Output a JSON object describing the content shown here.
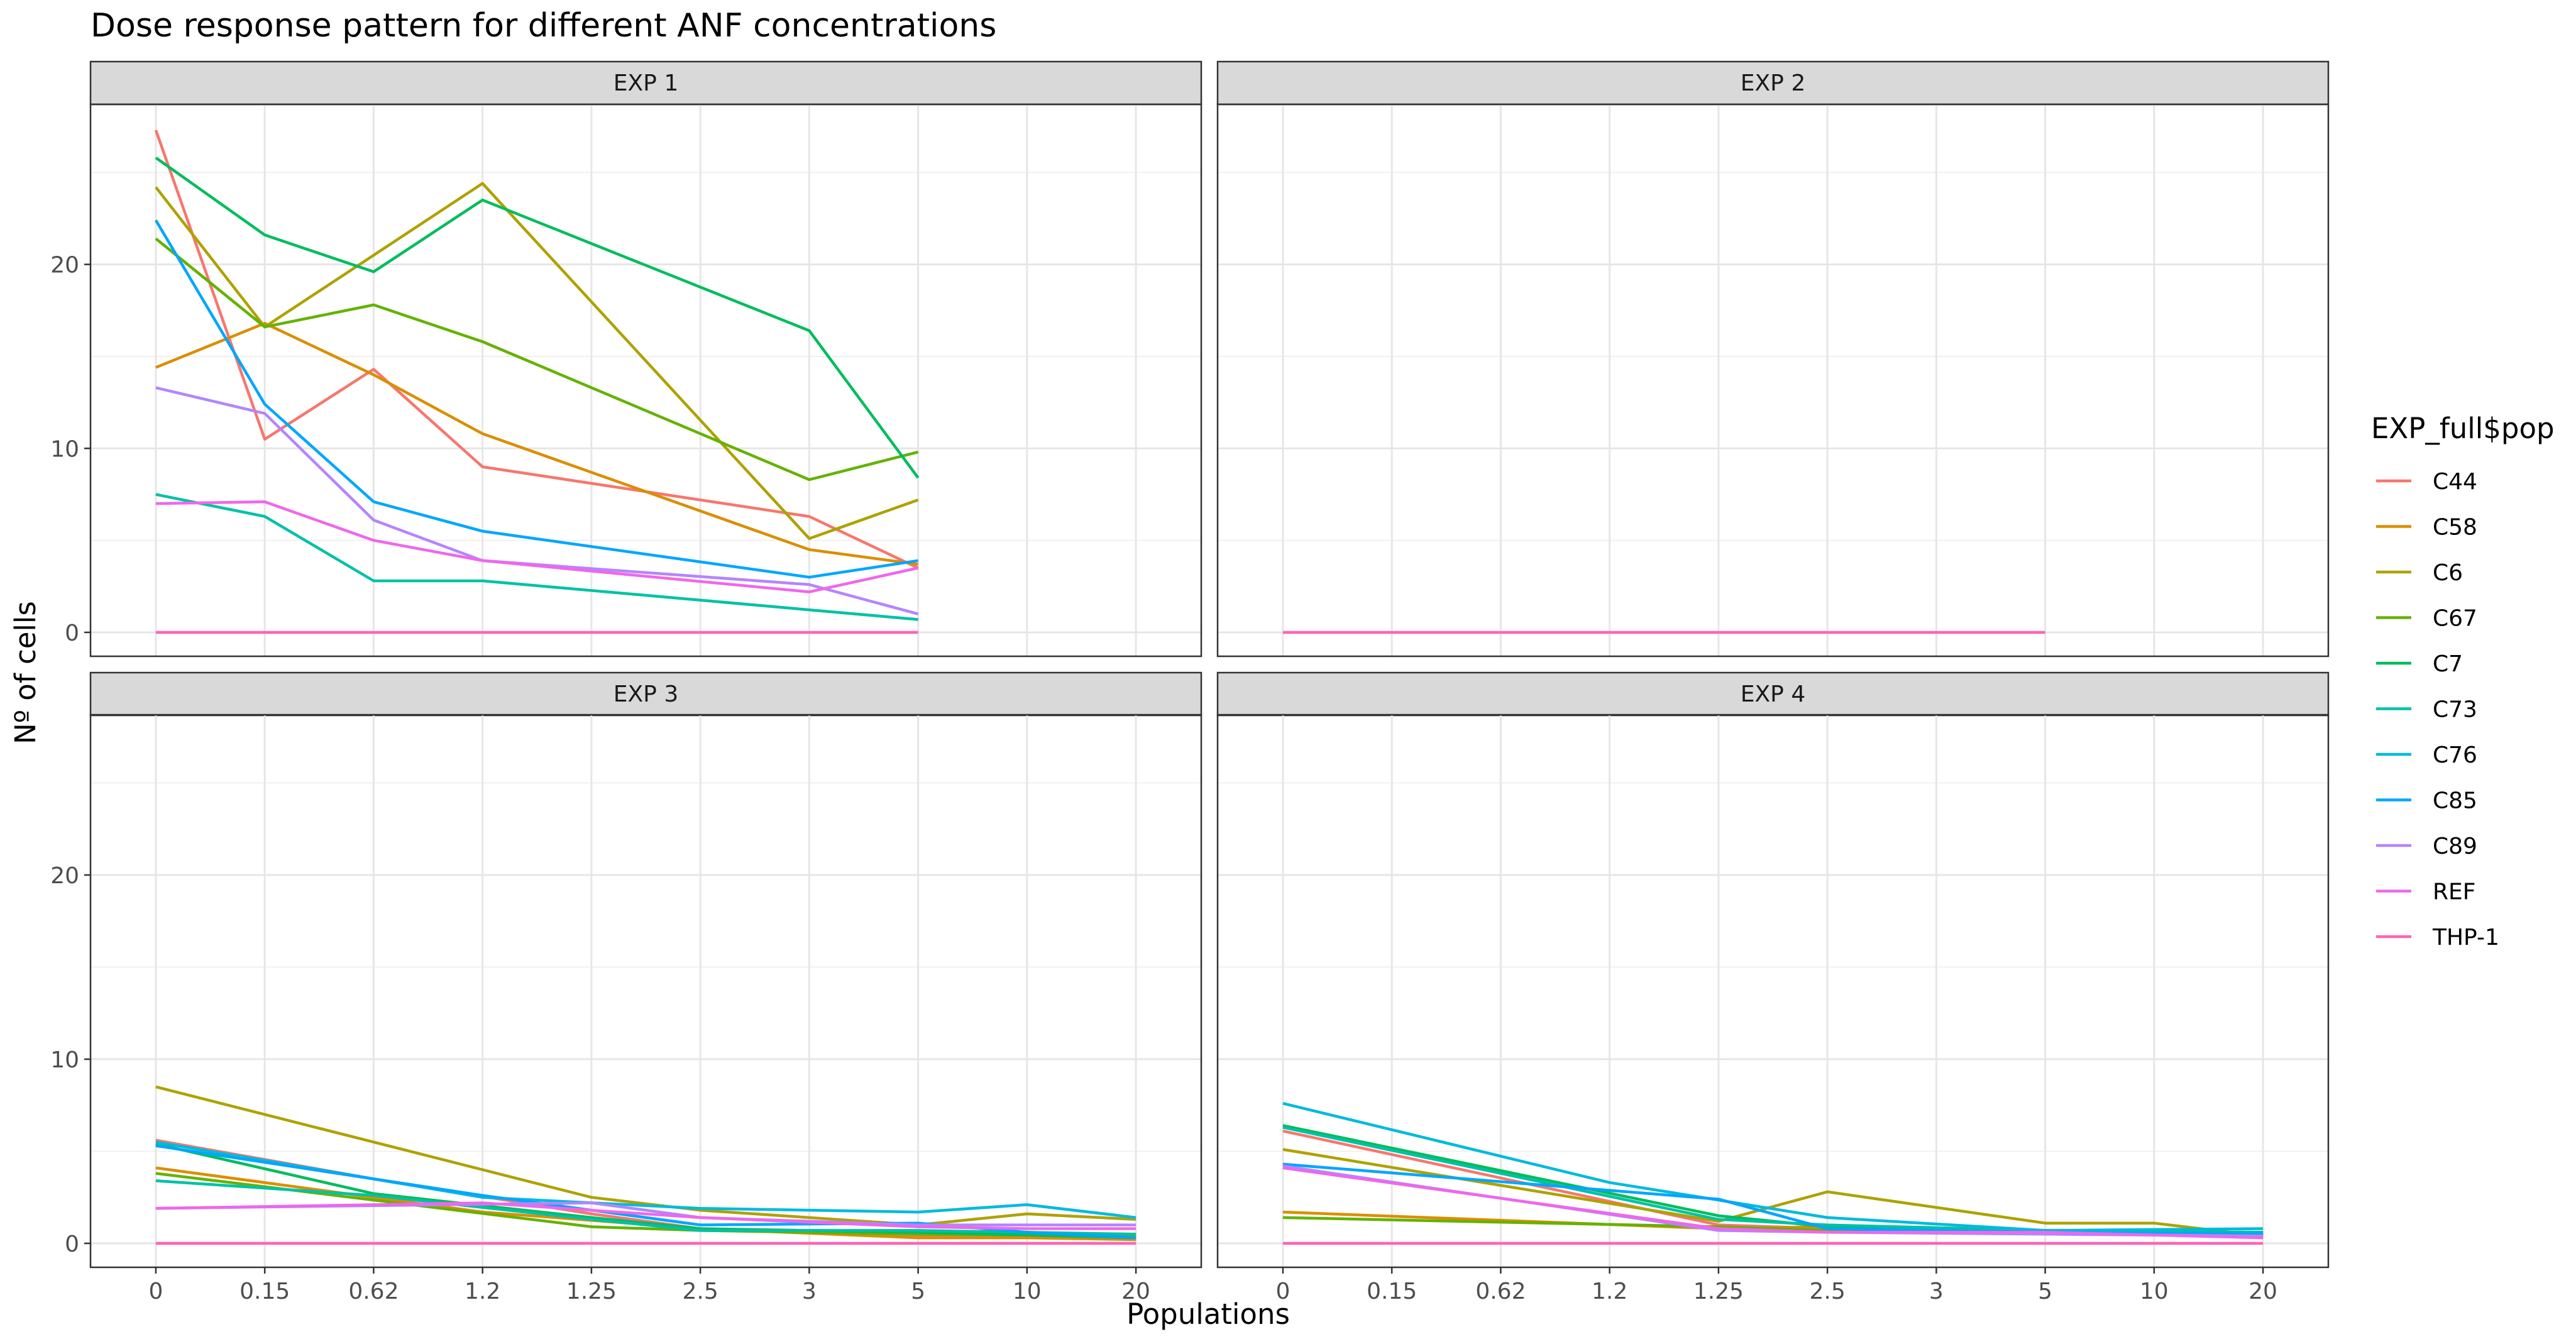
{
  "chart_data": {
    "type": "line",
    "title": "Dose response pattern for different ANF concentrations",
    "xlabel": "Populations",
    "ylabel": "Nº of cells",
    "ylim": [
      -1.3,
      28.7
    ],
    "yticks": [
      0,
      10,
      20
    ],
    "grid": true,
    "legend": {
      "title": "EXP_full$pop",
      "placement": "right",
      "entries": [
        {
          "name": "C44",
          "color": "#F8766D"
        },
        {
          "name": "C58",
          "color": "#DB8E00"
        },
        {
          "name": "C6",
          "color": "#AEA200"
        },
        {
          "name": "C67",
          "color": "#64B200"
        },
        {
          "name": "C7",
          "color": "#00BD5C"
        },
        {
          "name": "C73",
          "color": "#00C1A7"
        },
        {
          "name": "C76",
          "color": "#00BADE"
        },
        {
          "name": "C85",
          "color": "#00A6FF"
        },
        {
          "name": "C89",
          "color": "#B385FF"
        },
        {
          "name": "REF",
          "color": "#EF67EB"
        },
        {
          "name": "THP-1",
          "color": "#FF63B6"
        }
      ]
    },
    "panels": [
      {
        "label": "EXP 1",
        "x": [
          "0",
          "0.15",
          "0.62",
          "1.2",
          "1.25",
          "2.5",
          "3",
          "5",
          "10",
          "20"
        ],
        "series": [
          {
            "name": "C44",
            "points": [
              [
                "0",
                27.3
              ],
              [
                "0.15",
                10.5
              ],
              [
                "0.62",
                14.3
              ],
              [
                "1.2",
                9.0
              ],
              [
                "3",
                6.3
              ],
              [
                "5",
                3.5
              ]
            ]
          },
          {
            "name": "C58",
            "points": [
              [
                "0",
                14.4
              ],
              [
                "0.15",
                16.8
              ],
              [
                "0.62",
                14.0
              ],
              [
                "1.2",
                10.8
              ],
              [
                "3",
                4.5
              ],
              [
                "5",
                3.7
              ]
            ]
          },
          {
            "name": "C6",
            "points": [
              [
                "0",
                24.2
              ],
              [
                "0.15",
                16.6
              ],
              [
                "1.2",
                24.4
              ],
              [
                "3",
                5.1
              ],
              [
                "5",
                7.2
              ]
            ]
          },
          {
            "name": "C67",
            "points": [
              [
                "0",
                21.4
              ],
              [
                "0.15",
                16.6
              ],
              [
                "0.62",
                17.8
              ],
              [
                "1.2",
                15.8
              ],
              [
                "3",
                8.3
              ],
              [
                "5",
                9.8
              ]
            ]
          },
          {
            "name": "C7",
            "points": [
              [
                "0",
                25.8
              ],
              [
                "0.15",
                21.6
              ],
              [
                "0.62",
                19.6
              ],
              [
                "1.2",
                23.5
              ],
              [
                "3",
                16.4
              ],
              [
                "5",
                8.4
              ]
            ]
          },
          {
            "name": "C73",
            "points": [
              [
                "0",
                7.5
              ],
              [
                "0.15",
                6.3
              ],
              [
                "0.62",
                2.8
              ],
              [
                "1.2",
                2.8
              ],
              [
                "5",
                0.7
              ]
            ]
          },
          {
            "name": "C85",
            "points": [
              [
                "0",
                22.4
              ],
              [
                "0.15",
                12.4
              ],
              [
                "0.62",
                7.1
              ],
              [
                "1.2",
                5.5
              ],
              [
                "3",
                3.0
              ],
              [
                "5",
                3.9
              ]
            ]
          },
          {
            "name": "C89",
            "points": [
              [
                "0",
                13.3
              ],
              [
                "0.15",
                11.9
              ],
              [
                "0.62",
                6.1
              ],
              [
                "1.2",
                3.9
              ],
              [
                "3",
                2.6
              ],
              [
                "5",
                1.0
              ]
            ]
          },
          {
            "name": "REF",
            "points": [
              [
                "0",
                7.0
              ],
              [
                "0.15",
                7.1
              ],
              [
                "0.62",
                5.0
              ],
              [
                "1.2",
                3.9
              ],
              [
                "3",
                2.2
              ],
              [
                "5",
                3.5
              ]
            ]
          },
          {
            "name": "THP-1",
            "points": [
              [
                "0",
                0.0
              ],
              [
                "5",
                0.0
              ]
            ]
          }
        ]
      },
      {
        "label": "EXP 2",
        "x": [
          "0",
          "0.15",
          "0.62",
          "1.2",
          "1.25",
          "2.5",
          "3",
          "5",
          "10",
          "20"
        ],
        "series": [
          {
            "name": "THP-1",
            "points": [
              [
                "0",
                0.0
              ],
              [
                "5",
                0.0
              ]
            ]
          }
        ]
      },
      {
        "label": "EXP 3",
        "x": [
          "0",
          "0.15",
          "0.62",
          "1.2",
          "1.25",
          "2.5",
          "3",
          "5",
          "10",
          "20"
        ],
        "series": [
          {
            "name": "C44",
            "points": [
              [
                "0",
                5.6
              ],
              [
                "0.62",
                3.5
              ],
              [
                "1.25",
                1.6
              ],
              [
                "2.5",
                0.8
              ],
              [
                "5",
                0.4
              ],
              [
                "20",
                0.5
              ]
            ]
          },
          {
            "name": "C58",
            "points": [
              [
                "0",
                4.1
              ],
              [
                "1.2",
                1.7
              ],
              [
                "2.5",
                0.8
              ],
              [
                "5",
                0.3
              ],
              [
                "10",
                0.3
              ],
              [
                "20",
                0.2
              ]
            ]
          },
          {
            "name": "C6",
            "points": [
              [
                "0",
                8.5
              ],
              [
                "1.25",
                2.5
              ],
              [
                "2.5",
                1.8
              ],
              [
                "5",
                1.0
              ],
              [
                "10",
                1.6
              ],
              [
                "20",
                1.3
              ]
            ]
          },
          {
            "name": "C67",
            "points": [
              [
                "0",
                3.8
              ],
              [
                "1.25",
                0.9
              ],
              [
                "2.5",
                0.7
              ],
              [
                "5",
                0.5
              ],
              [
                "20",
                0.4
              ]
            ]
          },
          {
            "name": "C7",
            "points": [
              [
                "0",
                5.4
              ],
              [
                "0.62",
                2.7
              ],
              [
                "1.25",
                1.4
              ],
              [
                "2.5",
                0.8
              ],
              [
                "5",
                0.6
              ],
              [
                "20",
                0.3
              ]
            ]
          },
          {
            "name": "C73",
            "points": [
              [
                "0",
                3.4
              ],
              [
                "0.62",
                2.6
              ],
              [
                "1.25",
                1.3
              ],
              [
                "2.5",
                0.7
              ],
              [
                "5",
                0.7
              ],
              [
                "10",
                0.6
              ],
              [
                "20",
                0.5
              ]
            ]
          },
          {
            "name": "C76",
            "points": [
              [
                "0",
                5.5
              ],
              [
                "1.2",
                2.5
              ],
              [
                "2.5",
                1.9
              ],
              [
                "5",
                1.7
              ],
              [
                "10",
                2.1
              ],
              [
                "20",
                1.4
              ]
            ]
          },
          {
            "name": "C85",
            "points": [
              [
                "0",
                5.3
              ],
              [
                "1.2",
                2.6
              ],
              [
                "2.5",
                1.0
              ],
              [
                "5",
                1.1
              ],
              [
                "10",
                0.6
              ],
              [
                "20",
                0.3
              ]
            ]
          },
          {
            "name": "C89",
            "points": [
              [
                "0",
                1.9
              ],
              [
                "1.25",
                2.2
              ],
              [
                "2.5",
                1.4
              ],
              [
                "5",
                1.0
              ],
              [
                "10",
                1.0
              ],
              [
                "20",
                1.0
              ]
            ]
          },
          {
            "name": "REF",
            "points": [
              [
                "0",
                1.9
              ],
              [
                "1.2",
                2.2
              ],
              [
                "2.5",
                1.4
              ],
              [
                "5",
                0.9
              ],
              [
                "10",
                0.8
              ],
              [
                "20",
                0.8
              ]
            ]
          },
          {
            "name": "THP-1",
            "points": [
              [
                "0",
                0.0
              ],
              [
                "20",
                0.0
              ]
            ]
          }
        ]
      },
      {
        "label": "EXP 4",
        "x": [
          "0",
          "0.15",
          "0.62",
          "1.2",
          "1.25",
          "2.5",
          "3",
          "5",
          "10",
          "20"
        ],
        "series": [
          {
            "name": "C44",
            "points": [
              [
                "0",
                6.1
              ],
              [
                "1.25",
                1.0
              ],
              [
                "2.5",
                0.8
              ],
              [
                "5",
                0.6
              ],
              [
                "20",
                0.4
              ]
            ]
          },
          {
            "name": "C58",
            "points": [
              [
                "0",
                1.7
              ],
              [
                "1.25",
                0.8
              ],
              [
                "2.5",
                0.9
              ],
              [
                "5",
                0.7
              ],
              [
                "20",
                0.5
              ]
            ]
          },
          {
            "name": "C6",
            "points": [
              [
                "0",
                5.1
              ],
              [
                "1.25",
                1.2
              ],
              [
                "2.5",
                2.8
              ],
              [
                "5",
                1.1
              ],
              [
                "10",
                1.1
              ],
              [
                "20",
                0.4
              ]
            ]
          },
          {
            "name": "C67",
            "points": [
              [
                "0",
                1.4
              ],
              [
                "1.25",
                0.9
              ],
              [
                "2.5",
                0.7
              ],
              [
                "5",
                0.6
              ],
              [
                "20",
                0.4
              ]
            ]
          },
          {
            "name": "C7",
            "points": [
              [
                "0",
                6.4
              ],
              [
                "1.25",
                1.5
              ],
              [
                "2.5",
                0.9
              ],
              [
                "5",
                0.7
              ],
              [
                "20",
                0.5
              ]
            ]
          },
          {
            "name": "C73",
            "points": [
              [
                "0",
                6.3
              ],
              [
                "1.25",
                1.3
              ],
              [
                "2.5",
                1.0
              ],
              [
                "5",
                0.7
              ],
              [
                "20",
                0.6
              ]
            ]
          },
          {
            "name": "C76",
            "points": [
              [
                "0",
                7.6
              ],
              [
                "1.2",
                3.3
              ],
              [
                "2.5",
                1.4
              ],
              [
                "5",
                0.7
              ],
              [
                "20",
                0.8
              ]
            ]
          },
          {
            "name": "C85",
            "points": [
              [
                "0",
                4.3
              ],
              [
                "1.25",
                2.4
              ],
              [
                "2.5",
                0.8
              ],
              [
                "5",
                0.6
              ],
              [
                "20",
                0.5
              ]
            ]
          },
          {
            "name": "C89",
            "points": [
              [
                "0",
                4.2
              ],
              [
                "1.25",
                0.7
              ],
              [
                "2.5",
                0.6
              ],
              [
                "5",
                0.5
              ],
              [
                "20",
                0.4
              ]
            ]
          },
          {
            "name": "REF",
            "points": [
              [
                "0",
                4.1
              ],
              [
                "1.25",
                0.8
              ],
              [
                "2.5",
                0.6
              ],
              [
                "5",
                0.6
              ],
              [
                "20",
                0.3
              ]
            ]
          },
          {
            "name": "THP-1",
            "points": [
              [
                "0",
                0.0
              ],
              [
                "20",
                0.0
              ]
            ]
          }
        ]
      }
    ]
  }
}
